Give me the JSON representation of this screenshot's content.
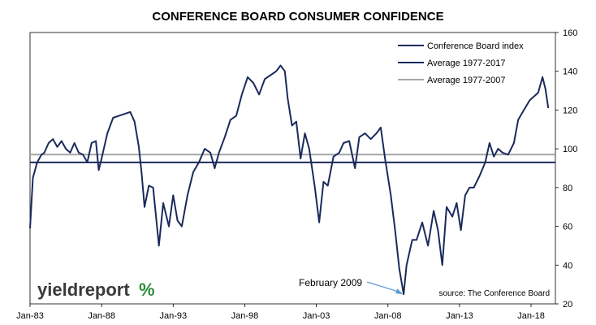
{
  "chart_data": {
    "type": "line",
    "title": "CONFERENCE BOARD CONSUMER CONFIDENCE",
    "xlabel": "",
    "ylabel": "",
    "ylim": [
      20,
      160
    ],
    "y_ticks": [
      "20",
      "40",
      "60",
      "80",
      "100",
      "120",
      "140",
      "160"
    ],
    "x_ticks": [
      "Jan-83",
      "Jan-88",
      "Jan-93",
      "Jan-98",
      "Jan-03",
      "Jan-08",
      "Jan-13",
      "Jan-18"
    ],
    "grid": false,
    "legend_position": "top-right",
    "series": [
      {
        "name": "Conference Board index",
        "color": "#1b2a5c",
        "points": [
          [
            1983.0,
            59
          ],
          [
            1983.2,
            85
          ],
          [
            1983.5,
            93
          ],
          [
            1983.8,
            97
          ],
          [
            1984.0,
            98
          ],
          [
            1984.3,
            103
          ],
          [
            1984.6,
            105
          ],
          [
            1984.9,
            101
          ],
          [
            1985.2,
            104
          ],
          [
            1985.5,
            100
          ],
          [
            1985.8,
            98
          ],
          [
            1986.1,
            103
          ],
          [
            1986.4,
            98
          ],
          [
            1986.7,
            97
          ],
          [
            1987.0,
            93
          ],
          [
            1987.3,
            103
          ],
          [
            1987.6,
            104
          ],
          [
            1987.8,
            89
          ],
          [
            1988.0,
            95
          ],
          [
            1988.4,
            108
          ],
          [
            1988.8,
            116
          ],
          [
            1989.2,
            117
          ],
          [
            1989.6,
            118
          ],
          [
            1990.0,
            119
          ],
          [
            1990.3,
            114
          ],
          [
            1990.6,
            101
          ],
          [
            1990.8,
            87
          ],
          [
            1991.0,
            70
          ],
          [
            1991.3,
            81
          ],
          [
            1991.6,
            80
          ],
          [
            1992.0,
            50
          ],
          [
            1992.3,
            72
          ],
          [
            1992.7,
            60
          ],
          [
            1993.0,
            76
          ],
          [
            1993.3,
            63
          ],
          [
            1993.6,
            60
          ],
          [
            1994.0,
            76
          ],
          [
            1994.4,
            88
          ],
          [
            1994.8,
            93
          ],
          [
            1995.2,
            100
          ],
          [
            1995.6,
            98
          ],
          [
            1995.9,
            90
          ],
          [
            1996.2,
            98
          ],
          [
            1996.6,
            106
          ],
          [
            1997.0,
            115
          ],
          [
            1997.4,
            117
          ],
          [
            1997.8,
            128
          ],
          [
            1998.2,
            137
          ],
          [
            1998.6,
            134
          ],
          [
            1999.0,
            128
          ],
          [
            1999.4,
            136
          ],
          [
            1999.8,
            138
          ],
          [
            2000.2,
            140
          ],
          [
            2000.5,
            143
          ],
          [
            2000.8,
            140
          ],
          [
            2001.0,
            126
          ],
          [
            2001.3,
            112
          ],
          [
            2001.6,
            114
          ],
          [
            2001.9,
            95
          ],
          [
            2002.2,
            108
          ],
          [
            2002.5,
            100
          ],
          [
            2002.9,
            80
          ],
          [
            2003.2,
            62
          ],
          [
            2003.5,
            83
          ],
          [
            2003.8,
            81
          ],
          [
            2004.2,
            96
          ],
          [
            2004.6,
            98
          ],
          [
            2004.9,
            103
          ],
          [
            2005.3,
            104
          ],
          [
            2005.7,
            90
          ],
          [
            2006.0,
            106
          ],
          [
            2006.4,
            108
          ],
          [
            2006.8,
            105
          ],
          [
            2007.2,
            108
          ],
          [
            2007.5,
            111
          ],
          [
            2007.8,
            95
          ],
          [
            2008.2,
            76
          ],
          [
            2008.5,
            58
          ],
          [
            2008.8,
            38
          ],
          [
            2009.1,
            25
          ],
          [
            2009.3,
            40
          ],
          [
            2009.7,
            53
          ],
          [
            2010.0,
            53
          ],
          [
            2010.4,
            62
          ],
          [
            2010.8,
            50
          ],
          [
            2011.2,
            68
          ],
          [
            2011.5,
            58
          ],
          [
            2011.8,
            40
          ],
          [
            2012.1,
            70
          ],
          [
            2012.5,
            65
          ],
          [
            2012.8,
            72
          ],
          [
            2013.1,
            58
          ],
          [
            2013.4,
            76
          ],
          [
            2013.7,
            80
          ],
          [
            2014.0,
            80
          ],
          [
            2014.4,
            86
          ],
          [
            2014.8,
            93
          ],
          [
            2015.1,
            103
          ],
          [
            2015.4,
            96
          ],
          [
            2015.7,
            100
          ],
          [
            2016.0,
            98
          ],
          [
            2016.4,
            97
          ],
          [
            2016.8,
            103
          ],
          [
            2017.1,
            115
          ],
          [
            2017.5,
            120
          ],
          [
            2017.9,
            125
          ],
          [
            2018.2,
            127
          ],
          [
            2018.5,
            129
          ],
          [
            2018.8,
            137
          ],
          [
            2019.0,
            131
          ],
          [
            2019.2,
            121
          ]
        ]
      },
      {
        "name": "Average 1977-2017",
        "color": "#1b2a5c",
        "hline": 93
      },
      {
        "name": "Average 1977-2007",
        "color": "#a6a6a6",
        "hline": 97
      }
    ],
    "annotations": [
      {
        "text": "February 2009",
        "target": [
          2009.1,
          25
        ]
      }
    ],
    "source_note": "source: The Conference Board"
  },
  "branding": {
    "logo_main": "yieldreport",
    "logo_pct": "%",
    "logo_pct_colors": [
      "#2e8b3a",
      "#c0392b"
    ]
  }
}
